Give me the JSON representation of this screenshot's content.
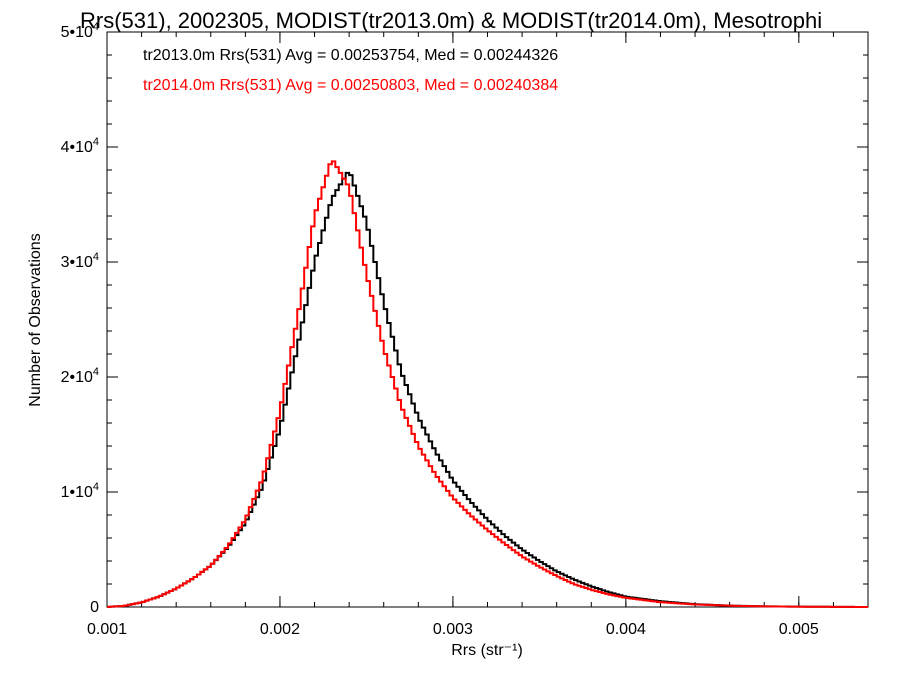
{
  "chart_data": {
    "type": "line",
    "title": "Rrs(531), 2002305, MODIST(tr2013.0m) & MODIST(tr2014.0m), Mesotrophi",
    "xlabel": "Rrs (str⁻¹)",
    "ylabel": "Number of Observations",
    "xlim": [
      0.001,
      0.0054
    ],
    "ylim": [
      0,
      50000
    ],
    "x_ticks": [
      0.001,
      0.002,
      0.003,
      0.004,
      0.005
    ],
    "x_tick_labels": [
      "0.001",
      "0.002",
      "0.003",
      "0.004",
      "0.005"
    ],
    "y_ticks": [
      0,
      10000,
      20000,
      30000,
      40000,
      50000
    ],
    "y_tick_mantissa": [
      "0",
      "1•10",
      "2•10",
      "3•10",
      "4•10",
      "5•10"
    ],
    "y_tick_exponent": [
      "",
      "4",
      "4",
      "4",
      "4",
      "4"
    ],
    "grid": false,
    "legend_placement": "top-left",
    "series": [
      {
        "name": "tr2013.0m Rrs(531) Avg = 0.00253754, Med = 0.00244326",
        "color": "#000000",
        "x": [
          0.001,
          0.0011,
          0.0012,
          0.0013,
          0.0014,
          0.0015,
          0.0016,
          0.0017,
          0.0018,
          0.0019,
          0.002,
          0.0021,
          0.0022,
          0.0023,
          0.0024,
          0.0025,
          0.0026,
          0.0027,
          0.0028,
          0.0029,
          0.003,
          0.0031,
          0.0032,
          0.0033,
          0.0034,
          0.0035,
          0.0036,
          0.0037,
          0.0038,
          0.0039,
          0.004,
          0.0042,
          0.0044,
          0.0046,
          0.0048,
          0.005,
          0.0054
        ],
        "y": [
          0,
          100,
          400,
          900,
          1600,
          2500,
          3600,
          5200,
          7300,
          10500,
          15500,
          22500,
          30000,
          35500,
          38000,
          33500,
          26500,
          20500,
          16500,
          13500,
          11000,
          9200,
          7600,
          6200,
          5000,
          4000,
          3100,
          2400,
          1800,
          1300,
          900,
          500,
          250,
          120,
          60,
          30,
          0
        ]
      },
      {
        "name": "tr2014.0m Rrs(531) Avg = 0.00250803, Med = 0.00240384",
        "color": "#ff0000",
        "x": [
          0.001,
          0.0011,
          0.0012,
          0.0013,
          0.0014,
          0.0015,
          0.0016,
          0.0017,
          0.0018,
          0.0019,
          0.002,
          0.0021,
          0.0022,
          0.0023,
          0.0024,
          0.0025,
          0.0026,
          0.0027,
          0.0028,
          0.0029,
          0.003,
          0.0031,
          0.0032,
          0.0033,
          0.0034,
          0.0035,
          0.0036,
          0.0037,
          0.0038,
          0.0039,
          0.004,
          0.0042,
          0.0044,
          0.0046,
          0.0048,
          0.005,
          0.0054
        ],
        "y": [
          0,
          100,
          400,
          900,
          1600,
          2500,
          3600,
          5300,
          7600,
          11200,
          17000,
          25000,
          34000,
          39000,
          36500,
          29000,
          22500,
          17500,
          14000,
          11500,
          9500,
          8000,
          6700,
          5500,
          4400,
          3500,
          2700,
          2000,
          1500,
          1100,
          800,
          420,
          220,
          110,
          55,
          28,
          0
        ]
      }
    ]
  }
}
